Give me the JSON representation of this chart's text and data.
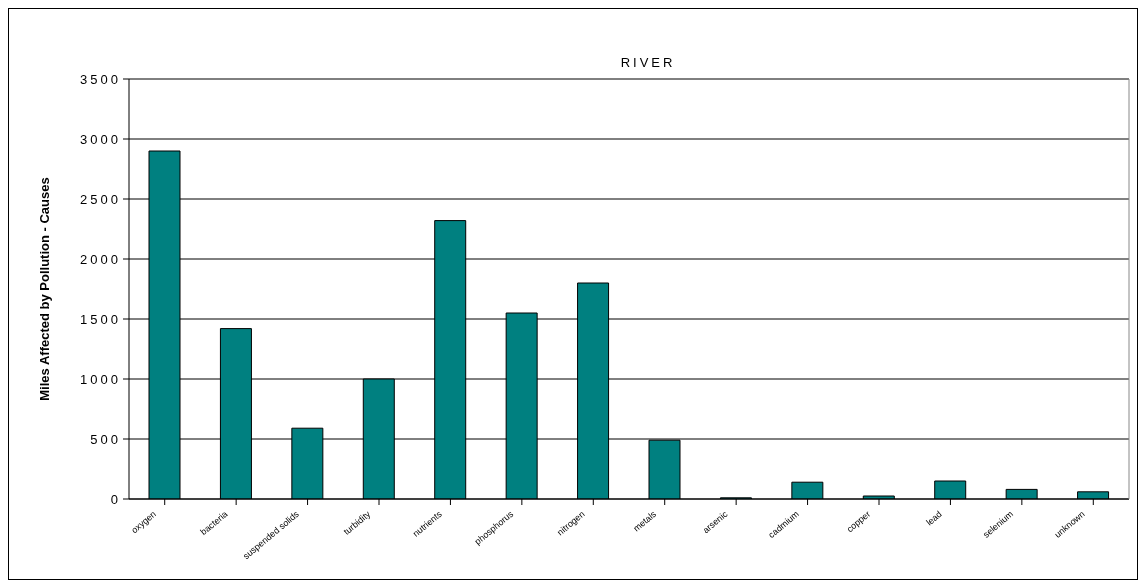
{
  "chart_data": {
    "type": "bar",
    "title": "RIVER",
    "ylabel": "Miles Affected by Pollution - Causes",
    "categories": [
      "oxygen",
      "bacteria",
      "suspended solids",
      "turbidity",
      "nutrients",
      "phosphorus",
      "nitrogen",
      "metals",
      "arsenic",
      "cadmium",
      "copper",
      "lead",
      "selenium",
      "unknown"
    ],
    "values": [
      2900,
      1420,
      590,
      1000,
      2320,
      1550,
      1800,
      490,
      10,
      140,
      25,
      150,
      80,
      60
    ],
    "color": "#008080",
    "ylim": [
      0,
      3500
    ],
    "yticks": [
      0,
      500,
      1000,
      1500,
      2000,
      2500,
      3000,
      3500
    ],
    "grid": "y"
  }
}
